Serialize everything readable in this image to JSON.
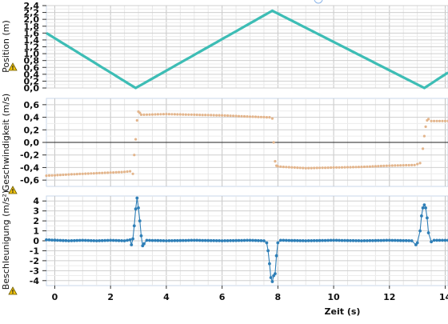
{
  "chart_data": [
    {
      "type": "line",
      "ylabel": "Position (m)",
      "ylim": [
        0,
        2.4
      ],
      "xlim": [
        -0.3,
        14.1
      ],
      "yticks": [
        "0,0",
        "0,2",
        "0,4",
        "0,6",
        "0,8",
        "1,0",
        "1,2",
        "1,4",
        "1,6",
        "1,8",
        "2,0",
        "2,2",
        "2,4"
      ],
      "ytick_values": [
        0,
        0.2,
        0.4,
        0.6,
        0.8,
        1.0,
        1.2,
        1.4,
        1.6,
        1.8,
        2.0,
        2.2,
        2.4
      ],
      "color": "#3dbdb5",
      "grid": true,
      "series": [
        {
          "x": [
            -0.3,
            2.9,
            7.8,
            13.25,
            14.1
          ],
          "y": [
            1.6,
            0.0,
            2.25,
            0.0,
            0.45
          ]
        }
      ]
    },
    {
      "type": "scatter",
      "ylabel": "Geschwindigkeit (m/s)",
      "ylim": [
        -0.7,
        0.7
      ],
      "xlim": [
        -0.3,
        14.1
      ],
      "yticks": [
        "-0,6",
        "-0,4",
        "-0,2",
        "0,0",
        "0,2",
        "0,4",
        "0,6"
      ],
      "ytick_values": [
        -0.6,
        -0.4,
        -0.2,
        0.0,
        0.2,
        0.4,
        0.6
      ],
      "color": "#e3b58c",
      "grid": true,
      "series": [
        {
          "x": [
            -0.3,
            0.5,
            1.5,
            2.5,
            2.7,
            2.8,
            2.85,
            2.9,
            2.95,
            3.0,
            3.05,
            3.1,
            3.2,
            4.0,
            5.0,
            6.0,
            7.0,
            7.6,
            7.7,
            7.8,
            7.85,
            7.9,
            7.95,
            8.0,
            8.2,
            9.0,
            10.0,
            11.0,
            12.0,
            12.9,
            13.1,
            13.2,
            13.25,
            13.3,
            13.35,
            13.4,
            13.5,
            14.1
          ],
          "y": [
            -0.53,
            -0.51,
            -0.49,
            -0.47,
            -0.46,
            -0.5,
            -0.2,
            0.05,
            0.35,
            0.49,
            0.47,
            0.44,
            0.44,
            0.45,
            0.44,
            0.43,
            0.41,
            0.4,
            0.4,
            0.38,
            0.0,
            -0.3,
            -0.37,
            -0.38,
            -0.39,
            -0.41,
            -0.4,
            -0.39,
            -0.37,
            -0.36,
            -0.33,
            -0.1,
            0.1,
            0.25,
            0.35,
            0.37,
            0.34,
            0.34
          ]
        }
      ]
    },
    {
      "type": "line",
      "ylabel": "Beschleunigung (m/s²)",
      "ylim": [
        -4.5,
        4.5
      ],
      "xlim": [
        -0.3,
        14.1
      ],
      "yticks": [
        "-4",
        "-3",
        "-2",
        "-1",
        "0",
        "1",
        "2",
        "3",
        "4"
      ],
      "ytick_values": [
        -4,
        -3,
        -2,
        -1,
        0,
        1,
        2,
        3,
        4
      ],
      "xticks": [
        "0",
        "2",
        "4",
        "6",
        "8",
        "10",
        "12",
        "14"
      ],
      "xtick_values": [
        0,
        2,
        4,
        6,
        8,
        10,
        12,
        14
      ],
      "xlabel": "Zeit (s)",
      "color": "#2f7fb7",
      "grid": true,
      "series": [
        {
          "x": [
            -0.3,
            0.5,
            1.0,
            1.5,
            2.0,
            2.5,
            2.7,
            2.75,
            2.8,
            2.85,
            2.9,
            2.95,
            3.0,
            3.05,
            3.1,
            3.15,
            3.2,
            3.3,
            4.0,
            5.0,
            6.0,
            7.0,
            7.5,
            7.6,
            7.65,
            7.7,
            7.75,
            7.8,
            7.85,
            7.9,
            7.95,
            8.0,
            8.1,
            9.0,
            10.0,
            11.0,
            12.0,
            12.8,
            12.95,
            13.0,
            13.1,
            13.15,
            13.2,
            13.25,
            13.3,
            13.35,
            13.4,
            13.5,
            13.6,
            14.1
          ],
          "y": [
            0.1,
            0.0,
            0.05,
            0.0,
            0.05,
            0.0,
            0.1,
            -0.4,
            0.2,
            1.5,
            3.2,
            4.3,
            3.3,
            2.0,
            0.5,
            -0.5,
            -0.3,
            0.05,
            0.0,
            0.05,
            0.0,
            0.05,
            0.0,
            -0.2,
            -1.0,
            -2.3,
            -3.7,
            -4.1,
            -3.5,
            -3.3,
            -1.5,
            -0.2,
            0.05,
            0.0,
            0.05,
            0.0,
            0.05,
            0.0,
            -0.4,
            -0.2,
            1.0,
            2.5,
            3.3,
            3.6,
            3.3,
            2.3,
            0.8,
            -0.1,
            0.05,
            0.05
          ]
        }
      ]
    }
  ]
}
